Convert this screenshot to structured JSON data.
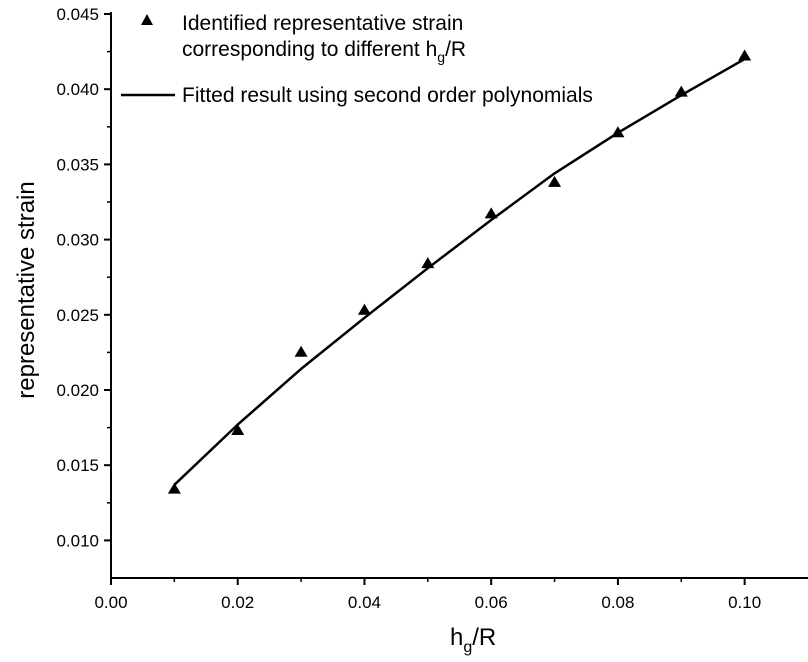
{
  "chart_data": {
    "type": "scatter",
    "xlabel": {
      "main": "h",
      "sub": "g",
      "tail": "/R"
    },
    "ylabel": "representative strain",
    "xlim": [
      0.0,
      0.11
    ],
    "ylim": [
      0.0075,
      0.045
    ],
    "x_ticks": [
      "0.00",
      "0.02",
      "0.04",
      "0.06",
      "0.08",
      "0.10"
    ],
    "x_tick_values": [
      0.0,
      0.02,
      0.04,
      0.06,
      0.08,
      0.1
    ],
    "y_ticks": [
      "0.010",
      "0.015",
      "0.020",
      "0.025",
      "0.030",
      "0.035",
      "0.040",
      "0.045"
    ],
    "y_tick_values": [
      0.01,
      0.015,
      0.02,
      0.025,
      0.03,
      0.035,
      0.04,
      0.045
    ],
    "grid": false,
    "legend_position": "top-left",
    "legend": {
      "points": {
        "line1": "Identified representative strain",
        "line2_main": "corresponding to different h",
        "line2_sub": "g",
        "line2_tail": "/R"
      },
      "fit": "Fitted result using second order polynomials"
    },
    "series": [
      {
        "kind": "points",
        "marker": "triangle",
        "x": [
          0.01,
          0.02,
          0.03,
          0.04,
          0.05,
          0.06,
          0.07,
          0.08,
          0.09,
          0.1
        ],
        "y": [
          0.0134,
          0.0173,
          0.0225,
          0.0253,
          0.0284,
          0.0317,
          0.0338,
          0.0371,
          0.0398,
          0.0422
        ]
      },
      {
        "kind": "fit",
        "x": [
          0.01,
          0.02,
          0.03,
          0.04,
          0.05,
          0.06,
          0.07,
          0.08,
          0.09,
          0.1
        ],
        "y": [
          0.0137,
          0.0177,
          0.0214,
          0.0248,
          0.0281,
          0.0313,
          0.0344,
          0.0371,
          0.0396,
          0.042
        ]
      }
    ]
  }
}
